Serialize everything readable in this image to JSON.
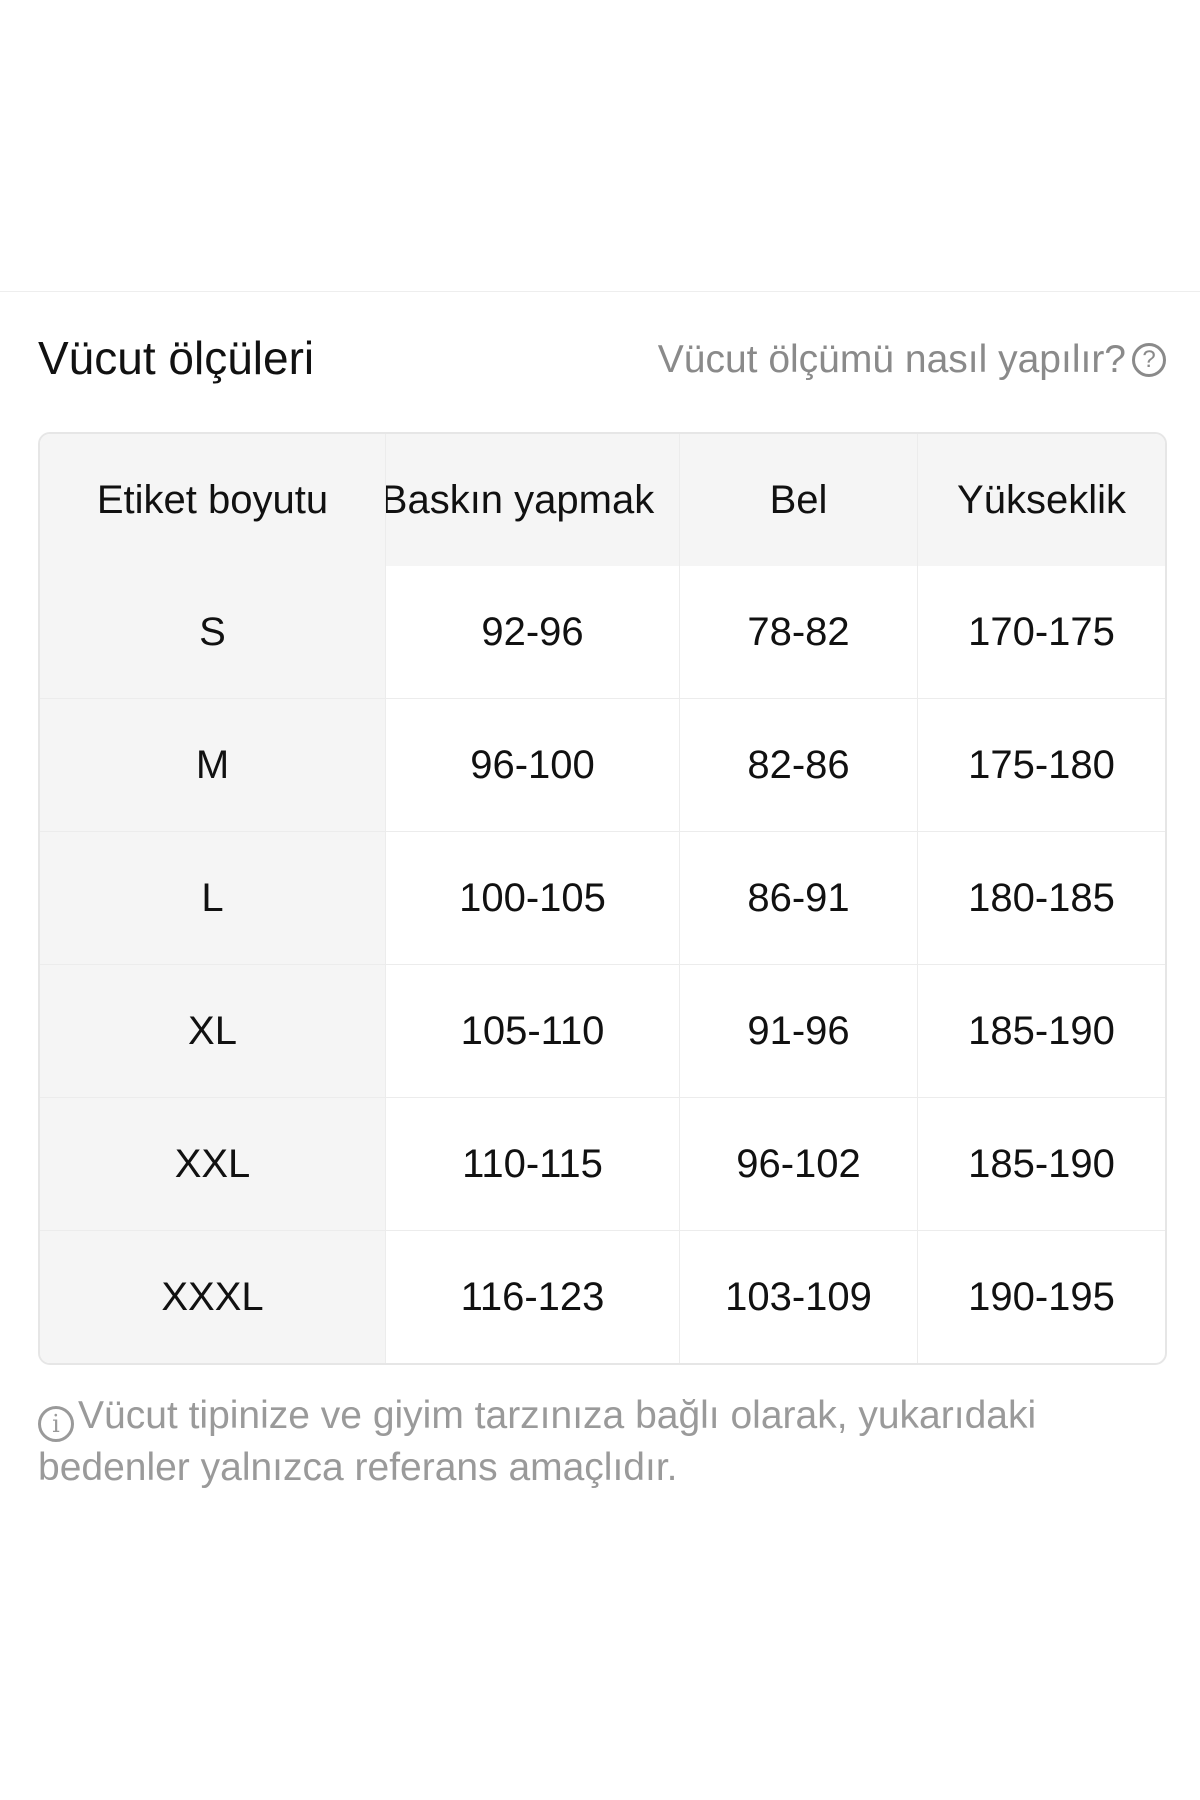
{
  "header": {
    "title": "Vücut ölçüleri",
    "help_link": "Vücut ölçümü nasıl yapılır?",
    "help_icon": "question-circle-icon"
  },
  "table": {
    "columns": [
      "Etiket boyutu",
      "Baskın yapmak",
      "Bel",
      "Yükseklik"
    ],
    "rows": [
      [
        "S",
        "92-96",
        "78-82",
        "170-175"
      ],
      [
        "M",
        "96-100",
        "82-86",
        "175-180"
      ],
      [
        "L",
        "100-105",
        "86-91",
        "180-185"
      ],
      [
        "XL",
        "105-110",
        "91-96",
        "185-190"
      ],
      [
        "XXL",
        "110-115",
        "96-102",
        "185-190"
      ],
      [
        "XXXL",
        "116-123",
        "103-109",
        "190-195"
      ]
    ]
  },
  "note": {
    "icon": "info-circle-icon",
    "text": "Vücut tipinize ve giyim tarzınıza bağlı olarak, yukarıdaki bedenler yalnızca referans amaçlıdır."
  }
}
